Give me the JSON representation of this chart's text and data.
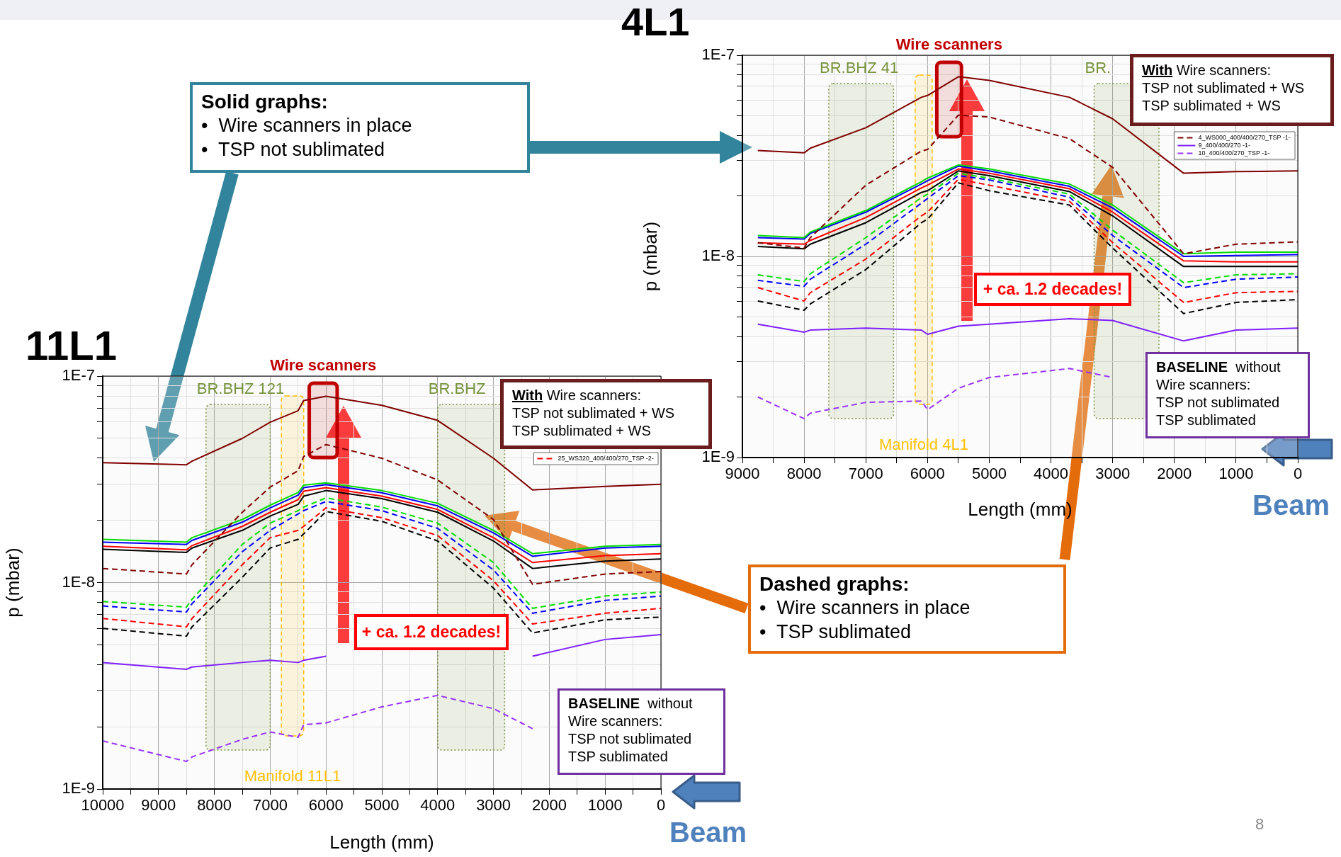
{
  "chart_data": [
    {
      "type": "line",
      "title": "4L1",
      "xlabel": "Length (mm)",
      "ylabel": "p (mbar)",
      "log": true,
      "grid": true,
      "marker": "none",
      "legend": "top right",
      "xlim": [
        9000,
        0
      ],
      "ylim": [
        1e-09,
        1e-07
      ],
      "xticks": [
        0,
        {
          "value": 500,
          "label": null
        },
        1000,
        {
          "value": 1500,
          "label": null
        },
        2000,
        {
          "value": 2500,
          "label": null
        },
        3000,
        {
          "value": 3500,
          "label": null
        },
        4000,
        {
          "value": 4500,
          "label": null
        },
        5000,
        {
          "value": 5500,
          "label": null
        },
        6000,
        {
          "value": 6500,
          "label": null
        },
        7000,
        {
          "value": 7500,
          "label": null
        },
        8000,
        {
          "value": 8500,
          "label": null
        },
        9000
      ],
      "yticks": [
        {
          "value": 1e-09,
          "label": "1E-9"
        },
        {
          "value": 2e-09,
          "label": null
        },
        {
          "value": 3e-09,
          "label": null
        },
        {
          "value": 4e-09,
          "label": null
        },
        {
          "value": 5e-09,
          "label": null
        },
        {
          "value": 6e-09,
          "label": null
        },
        {
          "value": 7e-09,
          "label": null
        },
        {
          "value": 8e-09,
          "label": null
        },
        {
          "value": 9e-09,
          "label": null
        },
        {
          "value": 1e-08,
          "label": "1E-8"
        },
        {
          "value": 2e-08,
          "label": null
        },
        {
          "value": 3e-08,
          "label": null
        },
        {
          "value": 4e-08,
          "label": null
        },
        {
          "value": 5e-08,
          "label": null
        },
        {
          "value": 6e-08,
          "label": null
        },
        {
          "value": 7e-08,
          "label": null
        },
        {
          "value": 8e-08,
          "label": null
        },
        {
          "value": 9e-08,
          "label": null
        },
        {
          "value": 1e-07,
          "label": "1E-7"
        }
      ],
      "x": [
        8750,
        8000,
        7900,
        7000,
        6100,
        6000,
        5500,
        5000,
        3700,
        3000,
        1850,
        1000,
        0
      ],
      "series": [
        {
          "color": "#800000",
          "line_style": "solid",
          "values": [
            3.36e-08,
            3.27e-08,
            3.45e-08,
            4.36e-08,
            6.18e-08,
            6.31e-08,
            7.82e-08,
            7.5e-08,
            6.18e-08,
            4.83e-08,
            2.59e-08,
            2.64e-08,
            2.66e-08
          ]
        },
        {
          "name": "4_WS000_400/400/270_TSP -1-",
          "color": "#800000",
          "line_style": "dashed",
          "values": [
            1.17e-08,
            1.1e-08,
            1.24e-08,
            2.26e-08,
            3.34e-08,
            3.4e-08,
            5.04e-08,
            4.93e-08,
            3.85e-08,
            2.77e-08,
            1.03e-08,
            1.15e-08,
            1.18e-08
          ]
        },
        {
          "color": "#00dd00",
          "line_style": "solid",
          "values": [
            1.27e-08,
            1.24e-08,
            1.32e-08,
            1.69e-08,
            2.35e-08,
            2.45e-08,
            2.85e-08,
            2.72e-08,
            2.29e-08,
            1.8e-08,
            1.03e-08,
            1.05e-08,
            1.05e-08
          ]
        },
        {
          "color": "#0000ff",
          "line_style": "solid",
          "values": [
            1.24e-08,
            1.22e-08,
            1.3e-08,
            1.66e-08,
            2.29e-08,
            2.38e-08,
            2.81e-08,
            2.66e-08,
            2.23e-08,
            1.74e-08,
            1e-08,
            1.01e-08,
            1.02e-08
          ]
        },
        {
          "color": "#ff0000",
          "line_style": "solid",
          "values": [
            1.17e-08,
            1.15e-08,
            1.2e-08,
            1.56e-08,
            2.19e-08,
            2.26e-08,
            2.72e-08,
            2.59e-08,
            2.17e-08,
            1.66e-08,
            9.5e-09,
            9.4e-09,
            9.4e-09
          ]
        },
        {
          "color": "#000000",
          "line_style": "solid",
          "values": [
            1.12e-08,
            1.09e-08,
            1.15e-08,
            1.47e-08,
            2.08e-08,
            2.12e-08,
            2.66e-08,
            2.52e-08,
            2.1e-08,
            1.59e-08,
            8.9e-09,
            8.9e-09,
            8.9e-09
          ]
        },
        {
          "color": "#00dd00",
          "line_style": "dashed",
          "values": [
            8.1e-09,
            7.5e-09,
            8.2e-09,
            1.24e-08,
            1.96e-08,
            2.04e-08,
            2.59e-08,
            2.45e-08,
            2.04e-08,
            1.35e-08,
            7.4e-09,
            8.1e-09,
            8.2e-09
          ]
        },
        {
          "color": "#0000ff",
          "line_style": "dashed",
          "values": [
            7.6e-09,
            7.1e-09,
            7.7e-09,
            1.15e-08,
            1.84e-08,
            1.94e-08,
            2.52e-08,
            2.4e-08,
            1.97e-08,
            1.27e-08,
            7e-09,
            7.7e-09,
            7.9e-09
          ]
        },
        {
          "color": "#ff0000",
          "line_style": "dashed",
          "values": [
            7e-09,
            6e-09,
            6.6e-09,
            9.7e-09,
            1.59e-08,
            1.66e-08,
            2.42e-08,
            2.26e-08,
            1.88e-08,
            1.17e-08,
            5.9e-09,
            6.6e-09,
            6.7e-09
          ]
        },
        {
          "color": "#000000",
          "line_style": "dashed",
          "values": [
            6e-09,
            5.4e-09,
            5.8e-09,
            8.6e-09,
            1.47e-08,
            1.53e-08,
            2.32e-08,
            2.12e-08,
            1.8e-08,
            1.1e-08,
            5.2e-09,
            5.9e-09,
            6.1e-09
          ]
        },
        {
          "name": "9_400/400/270 -1-",
          "color": "#7f1fff",
          "line_style": "solid",
          "values": [
            4.6e-09,
            4.2e-09,
            4.3e-09,
            4.4e-09,
            4.3e-09,
            4.1e-09,
            4.5e-09,
            4.6e-09,
            4.9e-09,
            4.8e-09,
            3.8e-09,
            4.3e-09,
            4.4e-09
          ]
        },
        {
          "name": "10_400/400/270_TSP -1-",
          "color": "#9933ff",
          "line_style": "dashed",
          "values": [
            2e-09,
            1.56e-09,
            1.66e-09,
            1.88e-09,
            1.91e-09,
            1.73e-09,
            2.21e-09,
            2.5e-09,
            2.77e-09,
            2.5e-09,
            null,
            null,
            null
          ]
        }
      ],
      "bands": [
        {
          "axis": "x",
          "from": 7600,
          "to": 6550,
          "label": "BR.BHZ 41",
          "color": "#77933c"
        },
        {
          "axis": "x",
          "from": 3300,
          "to": 2250,
          "label": "BR.",
          "color": "#77933c"
        },
        {
          "axis": "x",
          "from": 6200,
          "to": 5925,
          "label": "Manifold 4L1",
          "color": "#ffc000"
        },
        {
          "axis": "x",
          "from": 5850,
          "to": 5450,
          "label": "Wire scanners",
          "color": "#c00000"
        }
      ],
      "annotations": [
        "With Wire scanners:\nTSP not sublimated + WS\nTSP sublimated + WS",
        "+ ca. 1.2 decades!",
        "BASELINE  without\nWire scanners:\nTSP not sublimated\nTSP sublimated",
        "Beam",
        "Solid graphs:\n•  Wire scanners in place\n•  TSP not sublimated"
      ]
    },
    {
      "type": "line",
      "title": "11L1",
      "xlabel": "Length (mm)",
      "ylabel": "p (mbar)",
      "log": true,
      "grid": true,
      "marker": "none",
      "legend": "top right",
      "xlim": [
        10000,
        0
      ],
      "ylim": [
        1e-09,
        1e-07
      ],
      "xticks": [
        0,
        {
          "value": 500,
          "label": null
        },
        1000,
        {
          "value": 1500,
          "label": null
        },
        2000,
        {
          "value": 2500,
          "label": null
        },
        3000,
        {
          "value": 3500,
          "label": null
        },
        4000,
        {
          "value": 4500,
          "label": null
        },
        5000,
        {
          "value": 5500,
          "label": null
        },
        6000,
        {
          "value": 6500,
          "label": null
        },
        7000,
        {
          "value": 7500,
          "label": null
        },
        8000,
        {
          "value": 8500,
          "label": null
        },
        9000,
        {
          "value": 9500,
          "label": null
        },
        10000
      ],
      "yticks": [
        {
          "value": 1e-09,
          "label": "1E-9"
        },
        {
          "value": 2e-09,
          "label": null
        },
        {
          "value": 3e-09,
          "label": null
        },
        {
          "value": 4e-09,
          "label": null
        },
        {
          "value": 5e-09,
          "label": null
        },
        {
          "value": 6e-09,
          "label": null
        },
        {
          "value": 7e-09,
          "label": null
        },
        {
          "value": 8e-09,
          "label": null
        },
        {
          "value": 9e-09,
          "label": null
        },
        {
          "value": 1e-08,
          "label": "1E-8"
        },
        {
          "value": 2e-08,
          "label": null
        },
        {
          "value": 3e-08,
          "label": null
        },
        {
          "value": 4e-08,
          "label": null
        },
        {
          "value": 5e-08,
          "label": null
        },
        {
          "value": 6e-08,
          "label": null
        },
        {
          "value": 7e-08,
          "label": null
        },
        {
          "value": 8e-08,
          "label": null
        },
        {
          "value": 9e-08,
          "label": null
        },
        {
          "value": 1e-07,
          "label": "1E-7"
        }
      ],
      "x": [
        10000,
        8500,
        8400,
        7500,
        7000,
        6500,
        6400,
        6000,
        5000,
        4000,
        3000,
        2300,
        1000,
        0
      ],
      "series": [
        {
          "color": "#800000",
          "line_style": "solid",
          "values": [
            3.81e-08,
            3.72e-08,
            3.87e-08,
            4.99e-08,
            5.98e-08,
            6.8e-08,
            7.61e-08,
            7.98e-08,
            7.22e-08,
            6.1e-08,
            4e-08,
            2.81e-08,
            2.92e-08,
            2.99e-08
          ]
        },
        {
          "color": "#800000",
          "line_style": "dashed",
          "values": [
            1.17e-08,
            1.1e-08,
            1.22e-08,
            2.19e-08,
            2.9e-08,
            3.48e-08,
            4.08e-08,
            4.66e-08,
            4e-08,
            3.14e-08,
            2.02e-08,
            9.8e-09,
            1.1e-08,
            1.13e-08
          ]
        },
        {
          "color": "#00dd00",
          "line_style": "solid",
          "values": [
            1.62e-08,
            1.57e-08,
            1.65e-08,
            2.02e-08,
            2.37e-08,
            2.73e-08,
            2.96e-08,
            3.04e-08,
            2.79e-08,
            2.42e-08,
            1.79e-08,
            1.38e-08,
            1.5e-08,
            1.53e-08
          ]
        },
        {
          "color": "#0000ff",
          "line_style": "solid",
          "values": [
            1.57e-08,
            1.53e-08,
            1.6e-08,
            1.96e-08,
            2.3e-08,
            2.65e-08,
            2.88e-08,
            2.98e-08,
            2.72e-08,
            2.35e-08,
            1.74e-08,
            1.34e-08,
            1.47e-08,
            1.5e-08
          ]
        },
        {
          "color": "#ff0000",
          "line_style": "solid",
          "values": [
            1.5e-08,
            1.44e-08,
            1.51e-08,
            1.87e-08,
            2.19e-08,
            2.52e-08,
            2.77e-08,
            2.88e-08,
            2.62e-08,
            2.26e-08,
            1.65e-08,
            1.25e-08,
            1.35e-08,
            1.38e-08
          ]
        },
        {
          "color": "#000000",
          "line_style": "solid",
          "values": [
            1.45e-08,
            1.4e-08,
            1.47e-08,
            1.79e-08,
            2.1e-08,
            2.39e-08,
            2.62e-08,
            2.79e-08,
            2.55e-08,
            2.19e-08,
            1.59e-08,
            1.17e-08,
            1.27e-08,
            1.3e-08
          ]
        },
        {
          "color": "#00dd00",
          "line_style": "dashed",
          "values": [
            8.1e-09,
            7.6e-09,
            8.3e-09,
            1.53e-08,
            1.94e-08,
            2.23e-08,
            2.32e-08,
            2.57e-08,
            2.32e-08,
            1.94e-08,
            1.25e-08,
            7.5e-09,
            8.6e-09,
            9e-09
          ]
        },
        {
          "color": "#0000ff",
          "line_style": "dashed",
          "values": [
            7.7e-09,
            7.2e-09,
            7.9e-09,
            1.41e-08,
            1.79e-08,
            2.15e-08,
            2.23e-08,
            2.47e-08,
            2.23e-08,
            1.83e-08,
            1.15e-08,
            7.1e-09,
            8.2e-09,
            8.6e-09
          ]
        },
        {
          "name": "25_WS320_400/400/270_TSP -2-",
          "color": "#ff0000",
          "line_style": "dashed",
          "values": [
            6.7e-09,
            6.1e-09,
            6.7e-09,
            1.22e-08,
            1.65e-08,
            1.79e-08,
            1.87e-08,
            2.3e-08,
            2.06e-08,
            1.69e-08,
            1.02e-08,
            6.3e-09,
            7.1e-09,
            7.5e-09
          ]
        },
        {
          "color": "#000000",
          "line_style": "dashed",
          "values": [
            6e-09,
            5.5e-09,
            6.1e-09,
            1.06e-08,
            1.47e-08,
            1.62e-08,
            1.72e-08,
            2.21e-08,
            1.98e-08,
            1.59e-08,
            9.4e-09,
            5.7e-09,
            6.6e-09,
            6.8e-09
          ]
        },
        {
          "color": "#7f1fff",
          "line_style": "solid",
          "values": [
            4.1e-09,
            3.8e-09,
            3.9e-09,
            4.1e-09,
            4.2e-09,
            4.1e-09,
            4.2e-09,
            4.4e-09,
            null,
            null,
            null,
            4.4e-09,
            5.3e-09,
            5.6e-09
          ]
        },
        {
          "color": "#9933ff",
          "line_style": "dashed",
          "values": [
            1.71e-09,
            1.36e-09,
            1.43e-09,
            1.74e-09,
            1.89e-09,
            1.78e-09,
            2.05e-09,
            2.09e-09,
            2.5e-09,
            2.84e-09,
            2.45e-09,
            1.96e-09,
            null,
            null
          ]
        }
      ],
      "bands": [
        {
          "axis": "x",
          "from": 8150,
          "to": 7000,
          "label": "BR.BHZ 121",
          "color": "#77933c"
        },
        {
          "axis": "x",
          "from": 4000,
          "to": 2800,
          "label": "BR.BHZ",
          "color": "#77933c"
        },
        {
          "axis": "x",
          "from": 6800,
          "to": 6400,
          "label": "Manifold 11L1",
          "color": "#ffc000"
        },
        {
          "axis": "x",
          "from": 6300,
          "to": 5800,
          "label": "Wire scanners",
          "color": "#c00000"
        }
      ],
      "annotations": [
        "With Wire scanners:\nTSP not sublimated + WS\nTSP sublimated + WS",
        "+ ca. 1.2 decades!",
        "BASELINE  without\nWire scanners:\nTSP not sublimated\nTSP sublimated",
        "Beam",
        "Dashed graphs:\n•  Wire scanners in place\n•  TSP sublimated",
        "8"
      ]
    }
  ]
}
